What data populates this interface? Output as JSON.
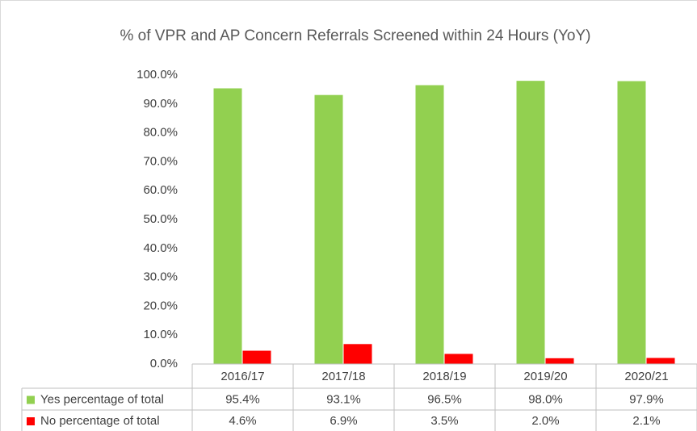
{
  "chart_data": {
    "type": "bar",
    "title": "% of VPR and AP Concern Referrals Screened within 24 Hours (YoY)",
    "categories": [
      "2016/17",
      "2017/18",
      "2018/19",
      "2019/20",
      "2020/21"
    ],
    "series": [
      {
        "name": "Yes percentage of total",
        "color": "#92d050",
        "values": [
          95.4,
          93.1,
          96.5,
          98.0,
          97.9
        ],
        "value_labels": [
          "95.4%",
          "93.1%",
          "96.5%",
          "98.0%",
          "97.9%"
        ]
      },
      {
        "name": "No percentage of total",
        "color": "#ff0000",
        "values": [
          4.6,
          6.9,
          3.5,
          2.0,
          2.1
        ],
        "value_labels": [
          "4.6%",
          "6.9%",
          "3.5%",
          "2.0%",
          "2.1%"
        ]
      }
    ],
    "ylim": [
      0,
      100
    ],
    "yticks": [
      {
        "value": 0,
        "label": "0.0%"
      },
      {
        "value": 10,
        "label": "10.0%"
      },
      {
        "value": 20,
        "label": "20.0%"
      },
      {
        "value": 30,
        "label": "30.0%"
      },
      {
        "value": 40,
        "label": "40.0%"
      },
      {
        "value": 50,
        "label": "50.0%"
      },
      {
        "value": 60,
        "label": "60.0%"
      },
      {
        "value": 70,
        "label": "70.0%"
      },
      {
        "value": 80,
        "label": "80.0%"
      },
      {
        "value": 90,
        "label": "90.0%"
      },
      {
        "value": 100,
        "label": "100.0%"
      }
    ],
    "grid": false,
    "data_table": true
  }
}
